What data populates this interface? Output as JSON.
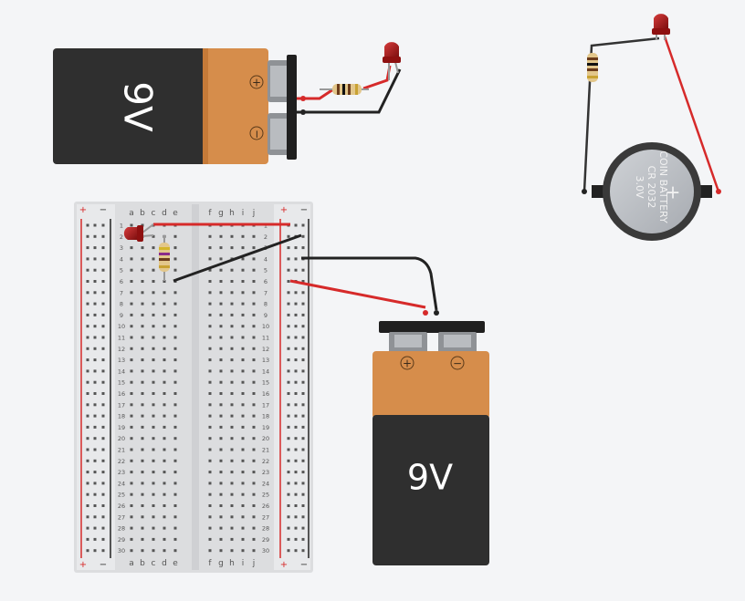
{
  "battery_top": {
    "label": "9V",
    "plus": "+",
    "minus": "−"
  },
  "battery_bottom": {
    "label": "9V",
    "plus": "+",
    "minus": "−"
  },
  "coin_cell": {
    "line1": "COIN BATTERY",
    "line2": "CR 2032",
    "line3": "3.0V",
    "plus": "+"
  },
  "breadboard": {
    "cols_left": [
      "a",
      "b",
      "c",
      "d",
      "e"
    ],
    "cols_right": [
      "f",
      "g",
      "h",
      "i",
      "j"
    ],
    "rail_plus": "+",
    "rail_minus": "−",
    "rows": [
      "1",
      "2",
      "3",
      "4",
      "5",
      "6",
      "7",
      "8",
      "9",
      "10",
      "11",
      "12",
      "13",
      "14",
      "15",
      "16",
      "17",
      "18",
      "19",
      "20",
      "21",
      "22",
      "23",
      "24",
      "25",
      "26",
      "27",
      "28",
      "29",
      "30"
    ]
  },
  "colors": {
    "wire_red": "#d62a2a",
    "wire_black": "#222222",
    "battery_orange": "#d68d4b",
    "battery_body": "#2f2f2f",
    "led_red": "#a31515"
  },
  "icons": [
    "led-icon",
    "resistor-icon",
    "battery-icon",
    "coin-cell-icon",
    "breadboard-icon"
  ]
}
